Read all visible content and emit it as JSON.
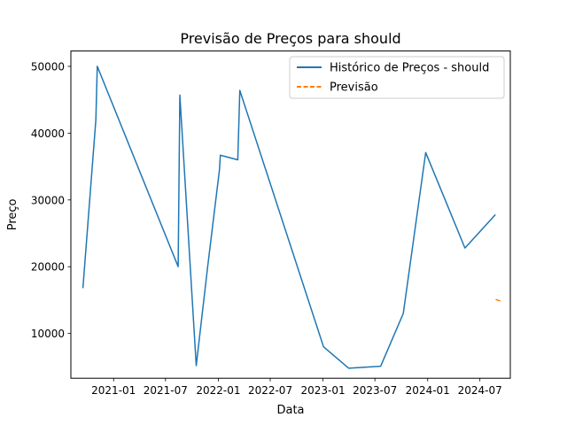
{
  "chart_data": {
    "type": "line",
    "title": "Previsão de Preços para should",
    "xlabel": "Data",
    "ylabel": "Preço",
    "xlim": [
      "2020-08-05",
      "2024-10-15"
    ],
    "ylim": [
      3300,
      52300
    ],
    "x_ticks": [
      "2021-01",
      "2021-07",
      "2022-01",
      "2022-07",
      "2023-01",
      "2023-07",
      "2024-01",
      "2024-07"
    ],
    "y_ticks": [
      10000,
      20000,
      30000,
      40000,
      50000
    ],
    "grid": false,
    "legend_position": "top-right",
    "series": [
      {
        "name": "Histórico de Preços - should",
        "color": "#1f77b4",
        "style": "solid",
        "points": [
          {
            "x": "2020-09-16",
            "y": 16800
          },
          {
            "x": "2020-10-31",
            "y": 42000
          },
          {
            "x": "2020-11-05",
            "y": 50000
          },
          {
            "x": "2021-08-14",
            "y": 20000
          },
          {
            "x": "2021-08-20",
            "y": 45700
          },
          {
            "x": "2021-10-16",
            "y": 5200
          },
          {
            "x": "2021-11-25",
            "y": 20000
          },
          {
            "x": "2022-01-05",
            "y": 34500
          },
          {
            "x": "2022-01-08",
            "y": 36700
          },
          {
            "x": "2022-03-10",
            "y": 36000
          },
          {
            "x": "2022-03-17",
            "y": 46400
          },
          {
            "x": "2023-01-03",
            "y": 8000
          },
          {
            "x": "2023-04-01",
            "y": 4800
          },
          {
            "x": "2023-07-21",
            "y": 5100
          },
          {
            "x": "2023-10-08",
            "y": 13000
          },
          {
            "x": "2023-12-25",
            "y": 37100
          },
          {
            "x": "2024-05-10",
            "y": 22800
          },
          {
            "x": "2024-08-24",
            "y": 27800
          }
        ]
      },
      {
        "name": "Previsão",
        "color": "#ff7f0e",
        "style": "dashed",
        "points": [
          {
            "x": "2024-08-25",
            "y": 15100
          },
          {
            "x": "2024-09-15",
            "y": 14800
          }
        ]
      }
    ]
  }
}
